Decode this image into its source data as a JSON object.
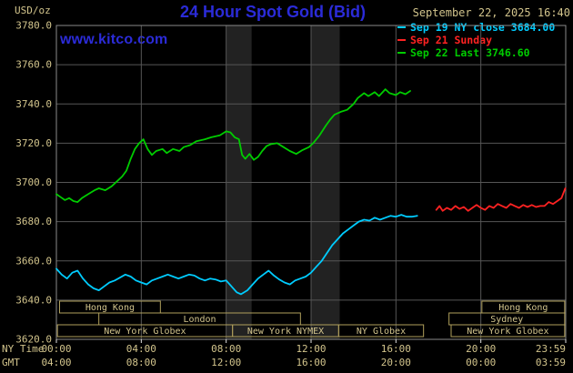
{
  "header": {
    "unit_label": "USD/oz",
    "title": "24 Hour Spot Gold (Bid)",
    "datetime": "September 22, 2025 16:40",
    "watermark": "www.kitco.com"
  },
  "legend": {
    "items": [
      {
        "label": "Sep 19 NY close 3684.00",
        "color": "#00ccff"
      },
      {
        "label": "Sep 21 Sunday",
        "color": "#ff2222"
      },
      {
        "label": "Sep 22 Last 3746.60",
        "color": "#00cc00"
      }
    ]
  },
  "axes": {
    "x_left_label_top": "NY Time",
    "x_left_label_bottom": "GMT",
    "ny_tick_labels": [
      "00:00",
      "04:00",
      "08:00",
      "12:00",
      "16:00",
      "20:00",
      "23:59"
    ],
    "gmt_tick_labels": [
      "04:00",
      "08:00",
      "12:00",
      "16:00",
      "20:00",
      "00:00",
      "03:59"
    ],
    "y_tick_labels": [
      "3780.0",
      "3760.0",
      "3740.0",
      "3720.0",
      "3700.0",
      "3680.0",
      "3660.0",
      "3640.0",
      "3620.0"
    ]
  },
  "colors": {
    "background": "#000000",
    "title_blue": "#2b2bd8",
    "link_blue": "#2b2bd8",
    "tan": "#d2c48c",
    "session_border": "#b0a05c",
    "grid": "#565656",
    "plot_border": "#8a8a8a",
    "band": "#222222",
    "tick": "#e0e0e0"
  },
  "chart_data": {
    "type": "line",
    "title": "24 Hour Spot Gold (Bid)",
    "ylabel": "USD/oz",
    "xlabel": "NY Time (hours)",
    "xlim": [
      0,
      24
    ],
    "ylim": [
      3620,
      3780
    ],
    "grid": true,
    "legend_position": "top-right",
    "x_gridlines": [
      4,
      8,
      12,
      16,
      20
    ],
    "y_gridlines": [
      3640,
      3660,
      3680,
      3700,
      3720,
      3740,
      3760
    ],
    "tick_hours": [
      0,
      4,
      8,
      12,
      16,
      20,
      24
    ],
    "ny_close": 3684.0,
    "last": 3746.6,
    "shaded_bands": [
      {
        "start": 8.0,
        "end": 9.2
      },
      {
        "start": 12.0,
        "end": 13.35
      }
    ],
    "sessions": [
      {
        "label": "Hong Kong",
        "row": 0,
        "start": 0.15,
        "end": 4.9
      },
      {
        "label": "Hong Kong",
        "row": 0,
        "start": 20.05,
        "end": 23.95
      },
      {
        "label": "London",
        "row": 1,
        "start": 2.0,
        "end": 11.5
      },
      {
        "label": "Sydney",
        "row": 1,
        "start": 18.5,
        "end": 23.95
      },
      {
        "label": "New York Globex",
        "row": 2,
        "start": 0.05,
        "end": 8.3
      },
      {
        "label": "New York NYMEX",
        "row": 2,
        "start": 8.3,
        "end": 13.3
      },
      {
        "label": "NY Globex",
        "row": 2,
        "start": 13.3,
        "end": 17.3
      },
      {
        "label": "New York Globex",
        "row": 2,
        "start": 18.6,
        "end": 23.95
      }
    ],
    "series": [
      {
        "name": "Sep 19 NY close 3684.00",
        "color": "#00ccff",
        "points": [
          [
            0,
            3656
          ],
          [
            0.25,
            3653
          ],
          [
            0.5,
            3651
          ],
          [
            0.75,
            3654
          ],
          [
            1,
            3655
          ],
          [
            1.25,
            3651
          ],
          [
            1.5,
            3648
          ],
          [
            1.75,
            3646
          ],
          [
            2,
            3645
          ],
          [
            2.25,
            3647
          ],
          [
            2.5,
            3649
          ],
          [
            2.75,
            3650
          ],
          [
            3,
            3651.5
          ],
          [
            3.25,
            3653
          ],
          [
            3.5,
            3652
          ],
          [
            3.75,
            3650
          ],
          [
            4,
            3649
          ],
          [
            4.25,
            3648
          ],
          [
            4.5,
            3650
          ],
          [
            4.75,
            3651
          ],
          [
            5,
            3652
          ],
          [
            5.25,
            3653
          ],
          [
            5.5,
            3652
          ],
          [
            5.75,
            3651
          ],
          [
            6,
            3652
          ],
          [
            6.25,
            3653
          ],
          [
            6.5,
            3652.5
          ],
          [
            6.75,
            3651
          ],
          [
            7,
            3650
          ],
          [
            7.25,
            3651
          ],
          [
            7.5,
            3650.5
          ],
          [
            7.75,
            3649.5
          ],
          [
            8,
            3650
          ],
          [
            8.25,
            3647
          ],
          [
            8.5,
            3644
          ],
          [
            8.7,
            3643
          ],
          [
            9,
            3645
          ],
          [
            9.25,
            3648
          ],
          [
            9.5,
            3651
          ],
          [
            9.75,
            3653
          ],
          [
            10,
            3655
          ],
          [
            10.25,
            3652.5
          ],
          [
            10.5,
            3650.5
          ],
          [
            10.75,
            3649
          ],
          [
            11,
            3648
          ],
          [
            11.25,
            3650
          ],
          [
            11.5,
            3651
          ],
          [
            11.75,
            3652
          ],
          [
            12,
            3654
          ],
          [
            12.25,
            3657
          ],
          [
            12.5,
            3660
          ],
          [
            12.75,
            3664
          ],
          [
            13,
            3668
          ],
          [
            13.25,
            3671
          ],
          [
            13.5,
            3674
          ],
          [
            13.75,
            3676
          ],
          [
            14,
            3678
          ],
          [
            14.25,
            3680
          ],
          [
            14.5,
            3681
          ],
          [
            14.75,
            3680.5
          ],
          [
            15,
            3682
          ],
          [
            15.25,
            3681
          ],
          [
            15.5,
            3682
          ],
          [
            15.75,
            3683
          ],
          [
            16,
            3682.5
          ],
          [
            16.25,
            3683.5
          ],
          [
            16.5,
            3682.5
          ],
          [
            16.75,
            3682.5
          ],
          [
            17,
            3683
          ]
        ]
      },
      {
        "name": "Sep 21 Sunday",
        "color": "#ff2222",
        "points": [
          [
            17.9,
            3686
          ],
          [
            18.05,
            3688
          ],
          [
            18.2,
            3685.5
          ],
          [
            18.4,
            3687
          ],
          [
            18.6,
            3686
          ],
          [
            18.8,
            3688
          ],
          [
            19,
            3686.5
          ],
          [
            19.2,
            3687.5
          ],
          [
            19.4,
            3685.5
          ],
          [
            19.6,
            3687
          ],
          [
            19.8,
            3688.5
          ],
          [
            20,
            3687
          ],
          [
            20.2,
            3686
          ],
          [
            20.4,
            3688
          ],
          [
            20.6,
            3687
          ],
          [
            20.8,
            3689
          ],
          [
            21,
            3688
          ],
          [
            21.2,
            3687
          ],
          [
            21.4,
            3689
          ],
          [
            21.6,
            3688
          ],
          [
            21.8,
            3687
          ],
          [
            22,
            3688.5
          ],
          [
            22.2,
            3687.5
          ],
          [
            22.4,
            3688.5
          ],
          [
            22.6,
            3687.5
          ],
          [
            22.8,
            3688
          ],
          [
            23,
            3688
          ],
          [
            23.2,
            3690
          ],
          [
            23.4,
            3689
          ],
          [
            23.6,
            3690.5
          ],
          [
            23.8,
            3692
          ],
          [
            23.98,
            3697
          ]
        ]
      },
      {
        "name": "Sep 22 Last 3746.60",
        "color": "#00cc00",
        "points": [
          [
            0,
            3694
          ],
          [
            0.2,
            3692.5
          ],
          [
            0.4,
            3691
          ],
          [
            0.6,
            3692
          ],
          [
            0.8,
            3690.5
          ],
          [
            1,
            3690
          ],
          [
            1.2,
            3692
          ],
          [
            1.5,
            3694
          ],
          [
            1.8,
            3696
          ],
          [
            2,
            3697
          ],
          [
            2.3,
            3696
          ],
          [
            2.6,
            3698
          ],
          [
            2.9,
            3701
          ],
          [
            3.1,
            3703
          ],
          [
            3.3,
            3706
          ],
          [
            3.5,
            3712
          ],
          [
            3.7,
            3717
          ],
          [
            3.9,
            3720
          ],
          [
            4.1,
            3722
          ],
          [
            4.3,
            3717
          ],
          [
            4.5,
            3714
          ],
          [
            4.7,
            3716
          ],
          [
            5,
            3717
          ],
          [
            5.2,
            3715
          ],
          [
            5.5,
            3717
          ],
          [
            5.8,
            3716
          ],
          [
            6,
            3718
          ],
          [
            6.3,
            3719
          ],
          [
            6.6,
            3721
          ],
          [
            7,
            3722
          ],
          [
            7.3,
            3723
          ],
          [
            7.7,
            3724
          ],
          [
            8,
            3726
          ],
          [
            8.2,
            3725.5
          ],
          [
            8.4,
            3723
          ],
          [
            8.6,
            3722
          ],
          [
            8.75,
            3714
          ],
          [
            8.9,
            3712
          ],
          [
            9.1,
            3714.5
          ],
          [
            9.3,
            3711.5
          ],
          [
            9.5,
            3713
          ],
          [
            9.7,
            3716
          ],
          [
            9.9,
            3718.5
          ],
          [
            10.1,
            3719.5
          ],
          [
            10.4,
            3720
          ],
          [
            10.7,
            3718
          ],
          [
            11,
            3716
          ],
          [
            11.3,
            3714.5
          ],
          [
            11.6,
            3716.5
          ],
          [
            11.9,
            3718
          ],
          [
            12.1,
            3720
          ],
          [
            12.4,
            3724
          ],
          [
            12.7,
            3729
          ],
          [
            12.9,
            3732
          ],
          [
            13.1,
            3734.5
          ],
          [
            13.4,
            3736
          ],
          [
            13.7,
            3737
          ],
          [
            14,
            3740
          ],
          [
            14.2,
            3743
          ],
          [
            14.5,
            3745.5
          ],
          [
            14.7,
            3744
          ],
          [
            15,
            3746
          ],
          [
            15.2,
            3744
          ],
          [
            15.5,
            3747.5
          ],
          [
            15.7,
            3745.5
          ],
          [
            16,
            3744.5
          ],
          [
            16.2,
            3746
          ],
          [
            16.45,
            3745
          ],
          [
            16.67,
            3746.6
          ]
        ]
      }
    ]
  }
}
